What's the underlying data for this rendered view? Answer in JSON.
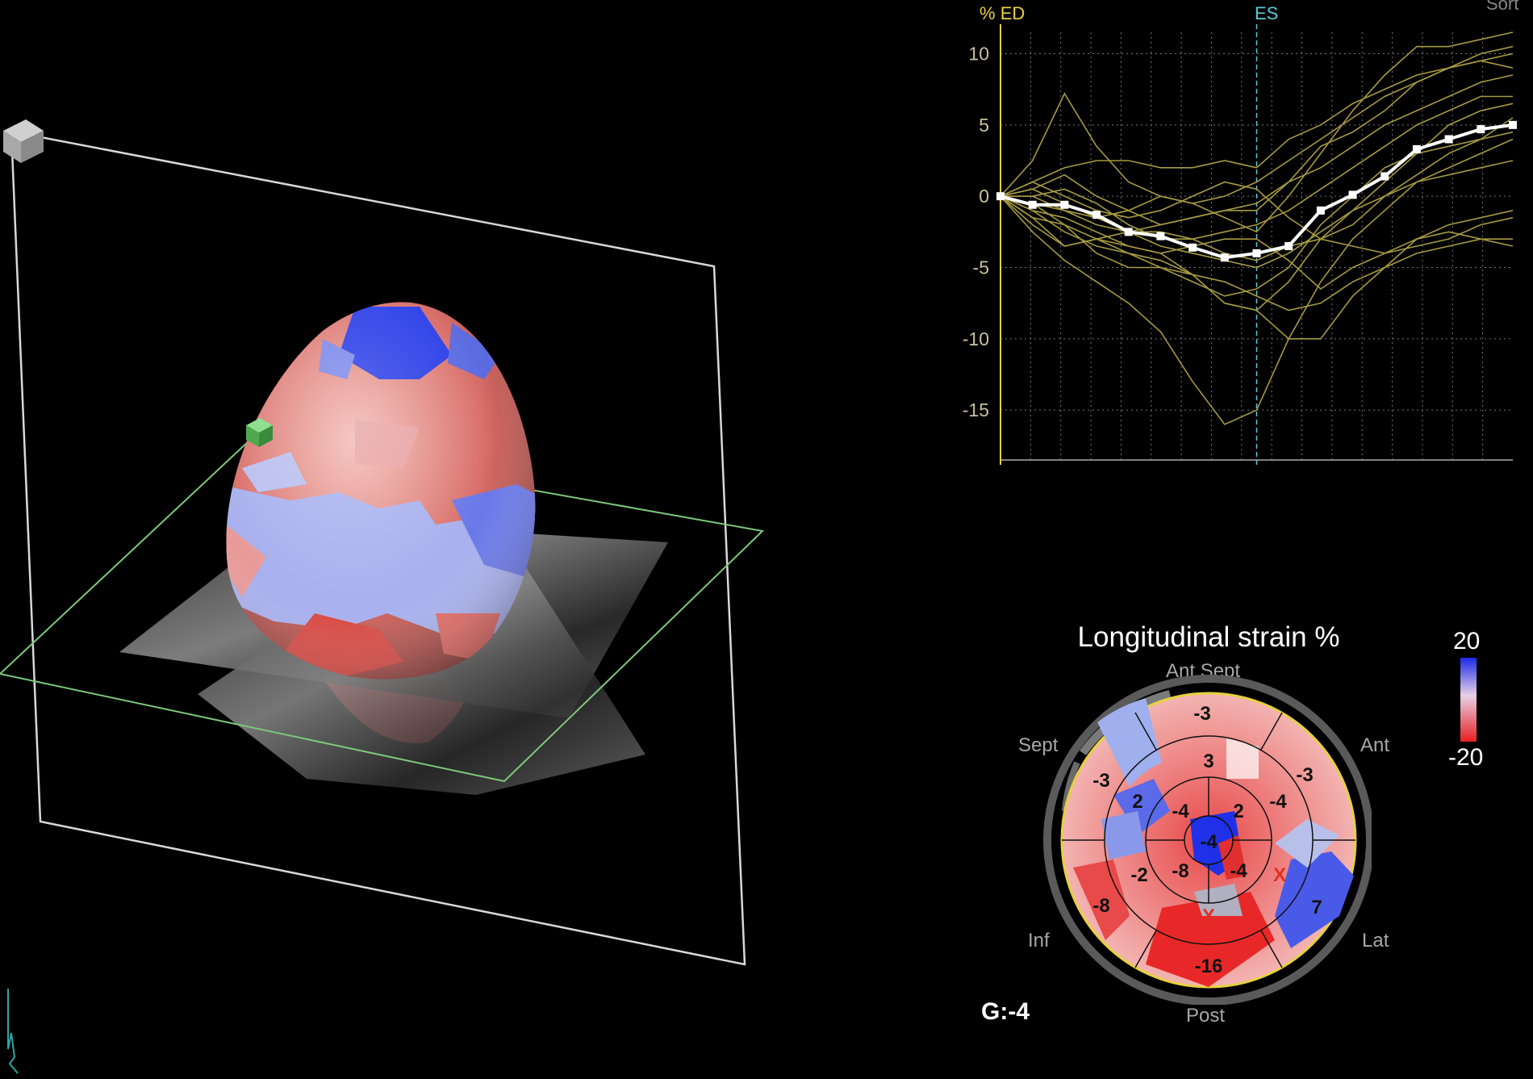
{
  "view3d": {
    "name": "3D LV strain rendering"
  },
  "graph": {
    "y_unit": "%",
    "ed_label": "ED",
    "es_label": "ES",
    "corner_label": "Sort",
    "y_ticks": [
      "10",
      "5",
      "0",
      "-5",
      "-10",
      "-15"
    ],
    "colors": {
      "segment": "#a59a40",
      "average": "#ffffff",
      "ed_line": "#e8d040",
      "es_line": "#5fc8d8"
    }
  },
  "chart_data": {
    "type": "line",
    "ylabel": "%",
    "ylim": [
      -18.5,
      11.5
    ],
    "x": [
      0,
      1,
      2,
      3,
      4,
      5,
      6,
      7,
      8,
      9,
      10,
      11,
      12,
      13,
      14,
      15,
      16
    ],
    "markers": {
      "ED": 0,
      "ES": 8
    },
    "series": [
      {
        "name": "global average",
        "values": [
          0,
          -0.6,
          -0.6,
          -1.3,
          -2.5,
          -2.8,
          -3.6,
          -4.3,
          -4.0,
          -3.5,
          -1.0,
          0.1,
          1.4,
          3.3,
          4.0,
          4.7,
          5.0
        ]
      },
      {
        "values": [
          0,
          2.5,
          7.2,
          3.5,
          1.0,
          0.0,
          -0.5,
          -1.5,
          -2.5,
          0.0,
          3.0,
          6.0,
          8.5,
          10.5,
          10.5,
          11.0,
          11.5
        ]
      },
      {
        "values": [
          0,
          -1.0,
          -2.5,
          -3.5,
          -4.0,
          -4.5,
          -5.5,
          -7.5,
          -8.0,
          -6.0,
          -3.0,
          -1.0,
          1.0,
          3.0,
          5.0,
          6.0,
          6.5
        ]
      },
      {
        "values": [
          0,
          -2.5,
          -4.5,
          -6.0,
          -7.5,
          -9.5,
          -13.0,
          -16.0,
          -15.0,
          -10.0,
          -6.0,
          -3.0,
          -1.0,
          1.0,
          2.0,
          3.0,
          4.0
        ]
      },
      {
        "values": [
          0,
          1.0,
          2.0,
          2.5,
          2.5,
          2.0,
          2.0,
          2.5,
          2.0,
          4.0,
          5.0,
          6.5,
          7.5,
          8.5,
          9.0,
          9.5,
          10.0
        ]
      },
      {
        "values": [
          0,
          -1.5,
          -3.5,
          -3.0,
          -3.5,
          -4.0,
          -5.5,
          -7.5,
          -8.0,
          -10.0,
          -10.0,
          -7.0,
          -5.0,
          -3.0,
          -2.0,
          -1.5,
          -1.0
        ]
      },
      {
        "values": [
          0,
          0.5,
          1.5,
          0.0,
          -1.0,
          -2.0,
          -1.5,
          -1.0,
          -1.0,
          1.0,
          3.5,
          4.5,
          6.0,
          8.0,
          9.0,
          9.5,
          9.0
        ]
      },
      {
        "values": [
          0,
          -0.5,
          -1.0,
          -1.5,
          -2.5,
          -3.5,
          -4.0,
          -4.5,
          -5.0,
          -4.0,
          -2.5,
          -1.0,
          0.0,
          1.0,
          1.5,
          2.0,
          2.5
        ]
      },
      {
        "values": [
          0,
          0.0,
          0.5,
          -0.5,
          -2.0,
          -3.0,
          -3.0,
          -2.5,
          -2.0,
          -1.0,
          0.5,
          2.0,
          3.5,
          5.0,
          6.0,
          7.0,
          7.0
        ]
      },
      {
        "values": [
          0,
          -1.0,
          -1.5,
          -2.5,
          -3.5,
          -4.0,
          -3.5,
          -3.0,
          -3.0,
          -4.5,
          -6.5,
          -5.0,
          -4.0,
          -3.5,
          -3.0,
          -2.0,
          -1.5
        ]
      },
      {
        "values": [
          0,
          0.0,
          -1.0,
          -2.0,
          -2.5,
          -2.5,
          -3.0,
          -4.0,
          -4.5,
          -3.5,
          -3.0,
          -3.5,
          -4.0,
          -3.0,
          -2.5,
          -3.0,
          -3.5
        ]
      },
      {
        "values": [
          0,
          -2.0,
          -3.5,
          -3.0,
          -2.5,
          -2.0,
          -1.5,
          -1.0,
          -0.5,
          1.0,
          2.0,
          3.5,
          5.0,
          6.0,
          7.0,
          8.0,
          8.5
        ]
      },
      {
        "values": [
          0,
          0.5,
          -0.5,
          -1.5,
          -1.0,
          0.0,
          -0.5,
          0.0,
          1.0,
          2.5,
          4.0,
          5.5,
          7.0,
          8.0,
          9.0,
          10.0,
          10.5
        ]
      },
      {
        "values": [
          0,
          -1.5,
          -2.0,
          -3.0,
          -4.0,
          -5.0,
          -6.0,
          -7.0,
          -6.5,
          -5.0,
          -2.0,
          0.0,
          2.0,
          3.0,
          3.5,
          4.0,
          4.5
        ]
      },
      {
        "values": [
          0,
          1.0,
          0.0,
          -1.0,
          -1.5,
          -1.0,
          0.0,
          1.0,
          0.5,
          -1.5,
          -3.0,
          -2.0,
          0.0,
          1.5,
          3.0,
          4.0,
          5.5
        ]
      },
      {
        "values": [
          0,
          -0.5,
          -2.0,
          -4.0,
          -5.0,
          -5.0,
          -5.5,
          -6.0,
          -7.0,
          -8.0,
          -7.5,
          -6.0,
          -5.0,
          -4.0,
          -3.5,
          -3.0,
          -3.0
        ]
      }
    ]
  },
  "bullseye": {
    "title": "Longitudinal strain %",
    "scale_max": "20",
    "scale_min": "-20",
    "global_label": "G:-4",
    "side_labels": {
      "ant_sept": "Ant Sept",
      "ant": "Ant",
      "sept": "Sept",
      "inf": "Inf",
      "lat": "Lat",
      "post": "Post"
    },
    "basal": {
      "ant_sept": "-3",
      "ant": "-3",
      "lat": "7",
      "post": "-16",
      "inf": "-8",
      "sept": "-3"
    },
    "mid": {
      "ant_sept": "3",
      "ant": "-4",
      "lat": "X",
      "post": "X",
      "inf": "-2",
      "sept": "2"
    },
    "apical": {
      "ant": "2",
      "lat": "-4",
      "inf": "-8",
      "sept": "-4"
    },
    "apex": "-4",
    "colors": {
      "positive": "#2040e8",
      "negative": "#e03030",
      "neutral": "#f0b8b8",
      "rim": "#e8d040",
      "excluded": "#e03020"
    }
  }
}
